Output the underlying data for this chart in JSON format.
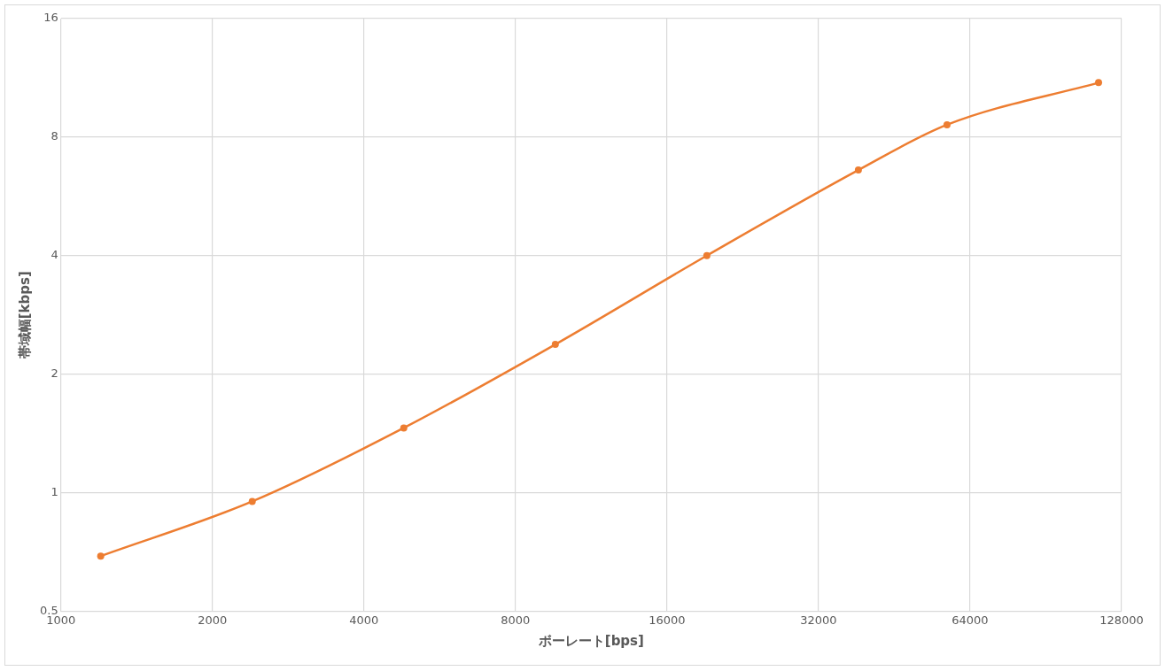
{
  "chart_data": {
    "type": "line",
    "xlabel": "ボーレート[bps]",
    "ylabel": "帯域幅[kbps]",
    "x": [
      1200,
      2400,
      4800,
      9600,
      19200,
      38400,
      57600,
      115200
    ],
    "series": [
      {
        "color": "#ed7d31",
        "values": [
          0.69,
          0.95,
          1.46,
          2.38,
          4.0,
          6.6,
          8.6,
          11.0
        ]
      }
    ],
    "log": "xy",
    "xlim": [
      1000,
      128000
    ],
    "xticks": [
      1000,
      2000,
      4000,
      8000,
      16000,
      32000,
      64000,
      128000
    ],
    "ylim": [
      0.5,
      16
    ],
    "yticks": [
      0.5,
      1,
      2,
      4,
      8,
      16
    ],
    "grid": true,
    "legend": false,
    "marker": "circle",
    "line_style": "solid"
  }
}
